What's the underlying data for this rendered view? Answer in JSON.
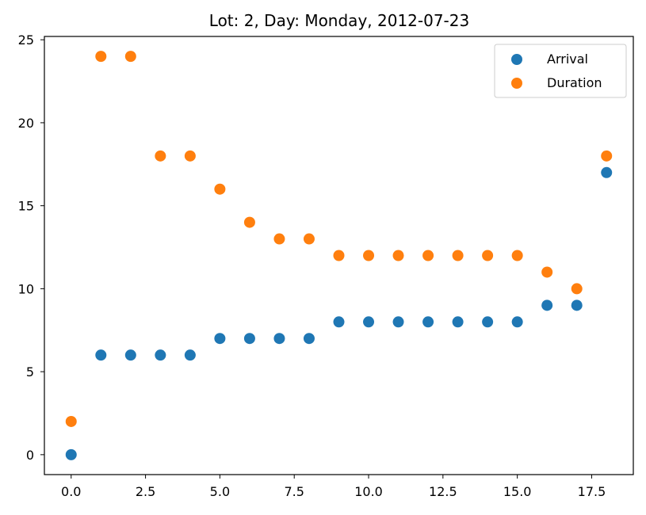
{
  "chart_data": {
    "type": "scatter",
    "title": "Lot: 2, Day: Monday, 2012-07-23",
    "xlabel": "",
    "ylabel": "",
    "xlim": [
      -0.9,
      18.9
    ],
    "ylim": [
      -1.2,
      25.2
    ],
    "x_ticks": [
      0.0,
      2.5,
      5.0,
      7.5,
      10.0,
      12.5,
      15.0,
      17.5
    ],
    "x_tick_labels": [
      "0.0",
      "2.5",
      "5.0",
      "7.5",
      "10.0",
      "12.5",
      "15.0",
      "17.5"
    ],
    "y_ticks": [
      0,
      5,
      10,
      15,
      20,
      25
    ],
    "y_tick_labels": [
      "0",
      "5",
      "10",
      "15",
      "20",
      "25"
    ],
    "grid": false,
    "legend_position": "top-right",
    "x": [
      0,
      1,
      2,
      3,
      4,
      5,
      6,
      7,
      8,
      9,
      10,
      11,
      12,
      13,
      14,
      15,
      16,
      17,
      18
    ],
    "series": [
      {
        "name": "Arrival",
        "color": "#1f77b4",
        "values": [
          0,
          6,
          6,
          6,
          6,
          7,
          7,
          7,
          7,
          8,
          8,
          8,
          8,
          8,
          8,
          8,
          9,
          9,
          17
        ]
      },
      {
        "name": "Duration",
        "color": "#ff7f0e",
        "values": [
          2,
          24,
          24,
          18,
          18,
          16,
          14,
          13,
          13,
          12,
          12,
          12,
          12,
          12,
          12,
          12,
          11,
          10,
          18
        ]
      }
    ]
  }
}
